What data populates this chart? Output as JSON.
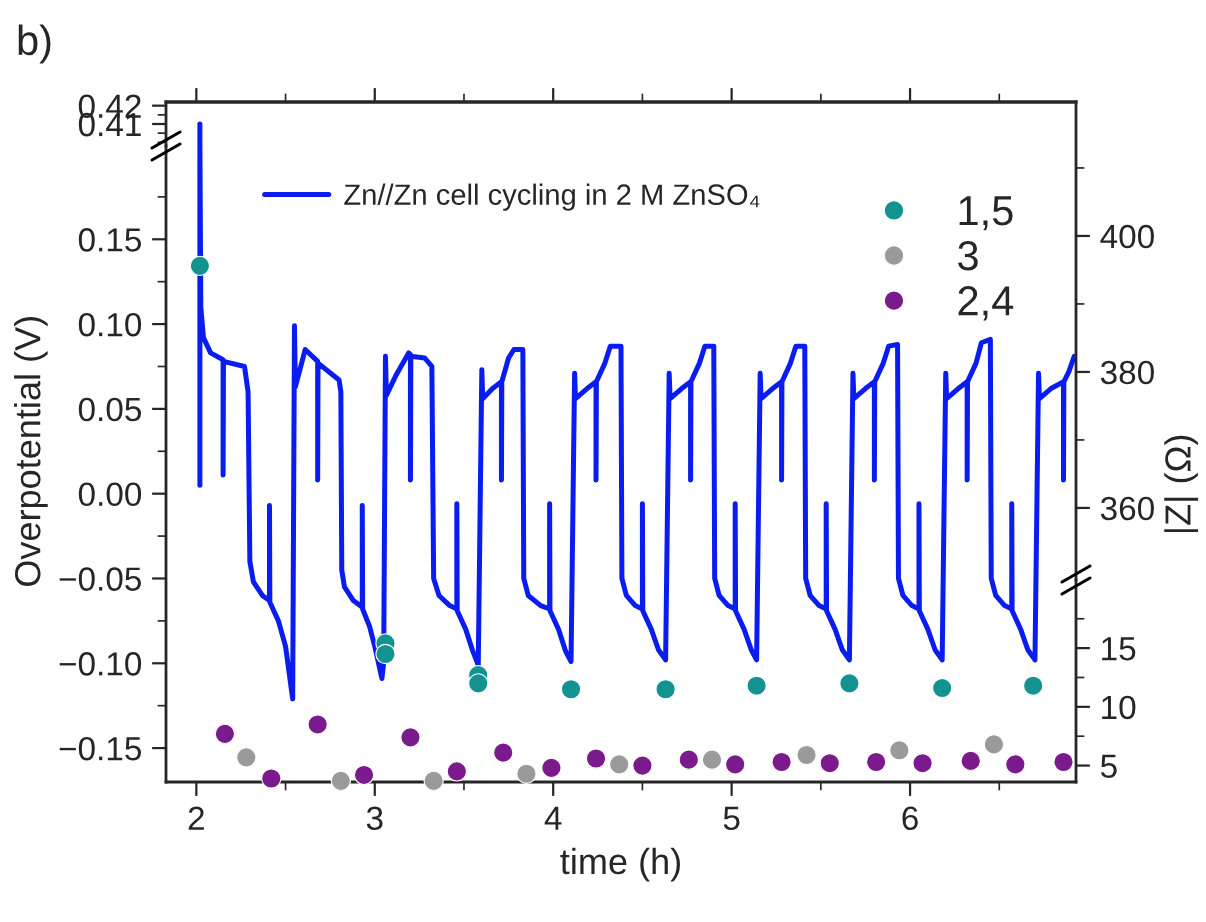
{
  "chart_data": [
    {
      "type": "line",
      "xlabel": "time (h)",
      "ylabel": "Overpotential (V)",
      "annotations": [
        "b)"
      ],
      "xlim": [
        1.83,
        6.93
      ],
      "xticks": [
        2,
        3,
        4,
        5,
        6,
        {
          "value": 2.5,
          "label": null
        },
        {
          "value": 3.5,
          "label": null
        },
        {
          "value": 4.5,
          "label": null
        },
        {
          "value": 5.5,
          "label": null
        },
        {
          "value": 6.5,
          "label": null
        }
      ],
      "ylim": [
        -0.17,
        0.205
      ],
      "yticks": [
        {
          "value": -0.15,
          "label": "−0.15"
        },
        {
          "value": -0.1,
          "label": "−0.10"
        },
        {
          "value": -0.05,
          "label": "−0.05"
        },
        {
          "value": 0,
          "label": "0.00"
        },
        {
          "value": 0.05,
          "label": "0.05"
        },
        {
          "value": 0.1,
          "label": "0.10"
        },
        {
          "value": 0.15,
          "label": "0.15"
        },
        {
          "value": -0.125,
          "label": null
        },
        {
          "value": -0.075,
          "label": null
        },
        {
          "value": -0.025,
          "label": null
        },
        {
          "value": 0.025,
          "label": null
        },
        {
          "value": 0.075,
          "label": null
        },
        {
          "value": 0.125,
          "label": null
        },
        {
          "value": 0.175,
          "label": null
        }
      ],
      "grid": false,
      "legend": "top left",
      "marker": "none",
      "line_style": "solid",
      "series": [
        {
          "name": "Zn//Zn cell cycling in 2 M ZnSO₄",
          "color": "#0a1cf0",
          "x": [
            2.02,
            2.02,
            2.025,
            2.04,
            2.08,
            2.15,
            2.15,
            2.152,
            2.27,
            2.29,
            2.3,
            2.32,
            2.37,
            2.41,
            2.41,
            2.412,
            2.46,
            2.5,
            2.54,
            2.55,
            2.555,
            2.61,
            2.68,
            2.68,
            2.682,
            2.8,
            2.81,
            2.815,
            2.83,
            2.88,
            2.93,
            2.93,
            2.932,
            2.97,
            3.0,
            3.04,
            3.05,
            3.06,
            3.065,
            3.12,
            3.19,
            3.2,
            3.2,
            3.202,
            3.28,
            3.32,
            3.33,
            3.36,
            3.42,
            3.46,
            3.46,
            3.462,
            3.51,
            3.55,
            3.58,
            3.6,
            3.605,
            3.66,
            3.71,
            3.71,
            3.712,
            3.75,
            3.78,
            3.83,
            3.835,
            3.86,
            3.93,
            3.98,
            3.98,
            3.982,
            4.03,
            4.07,
            4.1,
            4.12,
            4.125,
            4.19,
            4.24,
            4.24,
            4.242,
            4.29,
            4.32,
            4.38,
            4.385,
            4.41,
            4.46,
            4.5,
            4.5,
            4.502,
            4.55,
            4.59,
            4.63,
            4.65,
            4.655,
            4.72,
            4.77,
            4.77,
            4.772,
            4.82,
            4.85,
            4.9,
            4.905,
            4.93,
            4.98,
            5.02,
            5.02,
            5.022,
            5.07,
            5.11,
            5.14,
            5.16,
            5.165,
            5.23,
            5.28,
            5.28,
            5.282,
            5.33,
            5.36,
            5.41,
            5.415,
            5.44,
            5.49,
            5.53,
            5.53,
            5.532,
            5.58,
            5.62,
            5.66,
            5.68,
            5.685,
            5.75,
            5.8,
            5.8,
            5.802,
            5.85,
            5.88,
            5.93,
            5.935,
            5.96,
            6.01,
            6.05,
            6.05,
            6.052,
            6.1,
            6.14,
            6.18,
            6.2,
            6.205,
            6.27,
            6.32,
            6.32,
            6.322,
            6.37,
            6.4,
            6.45,
            6.455,
            6.48,
            6.53,
            6.57,
            6.57,
            6.572,
            6.62,
            6.66,
            6.7,
            6.72,
            6.725,
            6.79,
            6.86,
            6.86,
            6.862,
            6.89,
            6.92
          ],
          "values": [
            0.005,
            0.205,
            0.11,
            0.092,
            0.083,
            0.079,
            0.011,
            0.078,
            0.075,
            0.06,
            -0.04,
            -0.052,
            -0.06,
            -0.063,
            -0.007,
            -0.064,
            -0.075,
            -0.09,
            -0.121,
            0.099,
            0.063,
            0.085,
            0.078,
            0.008,
            0.077,
            0.067,
            0.06,
            -0.045,
            -0.055,
            -0.063,
            -0.067,
            -0.007,
            -0.068,
            -0.078,
            -0.09,
            -0.109,
            -0.1,
            0.081,
            0.058,
            0.07,
            0.083,
            0.082,
            0.008,
            0.081,
            0.08,
            0.075,
            -0.05,
            -0.06,
            -0.066,
            -0.068,
            -0.006,
            -0.069,
            -0.08,
            -0.093,
            -0.101,
            0.073,
            0.056,
            0.062,
            0.066,
            0.008,
            0.066,
            0.08,
            0.085,
            0.085,
            -0.05,
            -0.06,
            -0.066,
            -0.068,
            -0.006,
            -0.069,
            -0.08,
            -0.093,
            -0.099,
            0.071,
            0.056,
            0.062,
            0.066,
            0.008,
            0.066,
            0.077,
            0.087,
            0.087,
            -0.05,
            -0.06,
            -0.066,
            -0.068,
            -0.006,
            -0.069,
            -0.08,
            -0.092,
            -0.098,
            0.071,
            0.056,
            0.062,
            0.066,
            0.008,
            0.066,
            0.077,
            0.087,
            0.087,
            -0.05,
            -0.06,
            -0.066,
            -0.068,
            -0.006,
            -0.069,
            -0.08,
            -0.092,
            -0.098,
            0.071,
            0.056,
            0.062,
            0.066,
            0.008,
            0.066,
            0.077,
            0.087,
            0.087,
            -0.05,
            -0.06,
            -0.066,
            -0.068,
            -0.006,
            -0.069,
            -0.08,
            -0.092,
            -0.098,
            0.071,
            0.056,
            0.062,
            0.066,
            0.008,
            0.066,
            0.077,
            0.087,
            0.088,
            -0.05,
            -0.06,
            -0.066,
            -0.068,
            -0.006,
            -0.069,
            -0.08,
            -0.092,
            -0.098,
            0.071,
            0.056,
            0.062,
            0.066,
            0.008,
            0.066,
            0.077,
            0.089,
            0.091,
            -0.05,
            -0.06,
            -0.066,
            -0.068,
            -0.006,
            -0.069,
            -0.08,
            -0.092,
            -0.098,
            0.071,
            0.056,
            0.062,
            0.066,
            0.008,
            0.066,
            0.072,
            0.081
          ]
        }
      ]
    },
    {
      "type": "line",
      "xlim": [
        1.83,
        6.93
      ],
      "xticks": [
        2,
        3,
        4,
        5,
        6,
        {
          "value": 2.5,
          "label": null
        },
        {
          "value": 3.5,
          "label": null
        },
        {
          "value": 4.5,
          "label": null
        },
        {
          "value": 5.5,
          "label": null
        },
        {
          "value": 6.5,
          "label": null
        }
      ],
      "ylim": [
        0.398,
        0.422
      ],
      "yticks": [
        0.41,
        0.42,
        {
          "value": 0.4,
          "label": null
        },
        {
          "value": 0.405,
          "label": null
        },
        {
          "value": 0.415,
          "label": null
        }
      ],
      "tick_labels": "y",
      "grid": false,
      "marker": "none",
      "line_style": "solid",
      "series": [
        {
          "color": "#0a1cf0",
          "x": [
            2.02,
            2.02
          ],
          "values": [
            0.398,
            0.41
          ]
        }
      ]
    },
    {
      "type": "scatter",
      "xlim": [
        1.83,
        6.93
      ],
      "y2lim": [
        3.6,
        20.8
      ],
      "y2ticks": [
        5,
        10,
        15,
        {
          "value": 7.5,
          "label": null
        },
        {
          "value": 12.5,
          "label": null
        },
        {
          "value": 17.5,
          "label": null
        }
      ],
      "tick_labels": "y",
      "grid": false,
      "legend": "top right",
      "marker": "circle",
      "series": [
        {
          "name": "1,5",
          "color": "#139390",
          "axis": "y2",
          "x": [
            3.06,
            3.06,
            3.58,
            3.58,
            4.1,
            4.63,
            5.14,
            5.66,
            6.18,
            6.69
          ],
          "values": [
            15.4,
            14.5,
            12.7,
            12.0,
            11.5,
            11.5,
            11.8,
            12.0,
            11.6,
            11.8
          ]
        },
        {
          "name": "3",
          "color": "#9a9a9a",
          "axis": "y2",
          "x": [
            2.28,
            2.81,
            3.33,
            3.85,
            4.37,
            4.89,
            5.42,
            5.94,
            6.47
          ],
          "values": [
            5.7,
            3.7,
            3.7,
            4.3,
            5.1,
            5.5,
            5.9,
            6.3,
            6.8
          ]
        },
        {
          "name": "2,4",
          "color": "#7a1a8c",
          "axis": "y2",
          "x": [
            2.16,
            2.42,
            2.68,
            2.94,
            3.2,
            3.46,
            3.72,
            3.99,
            4.24,
            4.5,
            4.76,
            5.02,
            5.28,
            5.55,
            5.81,
            6.07,
            6.34,
            6.59,
            6.86
          ],
          "values": [
            7.7,
            3.9,
            8.5,
            4.2,
            7.4,
            4.5,
            6.1,
            4.8,
            5.6,
            5.0,
            5.5,
            5.1,
            5.3,
            5.2,
            5.3,
            5.2,
            5.4,
            5.1,
            5.3
          ]
        }
      ]
    },
    {
      "type": "scatter",
      "xlim": [
        1.83,
        6.93
      ],
      "y2label": "|Z| (Ω)",
      "y2lim": [
        349.4,
        419.7
      ],
      "y2ticks": [
        360,
        380,
        400,
        {
          "value": 370,
          "label": null
        },
        {
          "value": 390,
          "label": null
        },
        {
          "value": 410,
          "label": null
        }
      ],
      "tick_labels": "y",
      "grid": false,
      "marker": "circle",
      "series": [
        {
          "color": "#139390",
          "axis": "y2",
          "x": [
            2.02
          ],
          "values": [
            395.6
          ]
        }
      ]
    }
  ]
}
